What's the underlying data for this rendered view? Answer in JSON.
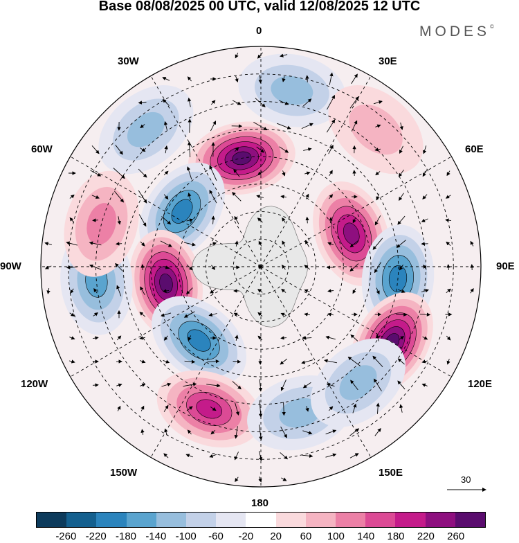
{
  "title": "Base 08/08/2025 00 UTC, valid 12/08/2025 12 UTC",
  "brand": "MODES",
  "brand_mark": "©",
  "map": {
    "projection": "south-polar-stereographic",
    "lon_labels": {
      "top": "0",
      "top_right": "30E",
      "right_upper": "60E",
      "right": "90E",
      "right_lower": "120E",
      "bottom_right": "150E",
      "bottom": "180",
      "bottom_left": "150W",
      "left_lower": "120W",
      "left": "90W",
      "left_upper": "60W",
      "top_left": "30W"
    },
    "reference_vector_label": "30",
    "anomaly_centers": [
      {
        "lon": -10,
        "lat": -50,
        "value": 260,
        "sign": "positive"
      },
      {
        "lon": 70,
        "lat": -55,
        "value": 240,
        "sign": "positive"
      },
      {
        "lon": 95,
        "lat": -40,
        "value": -200,
        "sign": "negative"
      },
      {
        "lon": 120,
        "lat": -35,
        "value": 260,
        "sign": "positive"
      },
      {
        "lon": -55,
        "lat": -55,
        "value": -180,
        "sign": "negative"
      },
      {
        "lon": -100,
        "lat": -55,
        "value": 260,
        "sign": "positive"
      },
      {
        "lon": -140,
        "lat": -55,
        "value": -200,
        "sign": "negative"
      },
      {
        "lon": -95,
        "lat": -30,
        "value": -160,
        "sign": "negative"
      },
      {
        "lon": -160,
        "lat": -35,
        "value": 180,
        "sign": "positive"
      },
      {
        "lon": 165,
        "lat": -35,
        "value": -120,
        "sign": "negative"
      },
      {
        "lon": 10,
        "lat": -25,
        "value": -120,
        "sign": "negative"
      },
      {
        "lon": -40,
        "lat": -25,
        "value": -100,
        "sign": "negative"
      },
      {
        "lon": -75,
        "lat": -30,
        "value": 100,
        "sign": "positive"
      },
      {
        "lon": 40,
        "lat": -25,
        "value": 60,
        "sign": "positive"
      },
      {
        "lon": 140,
        "lat": -35,
        "value": -120,
        "sign": "negative"
      }
    ]
  },
  "colorbar": {
    "ticks": [
      "-260",
      "-220",
      "-180",
      "-140",
      "-100",
      "-60",
      "-20",
      "20",
      "60",
      "100",
      "140",
      "180",
      "220",
      "260"
    ],
    "colors": [
      "#0d3b5c",
      "#14608f",
      "#2b84bd",
      "#5aa4cf",
      "#97bedd",
      "#c3d1e8",
      "#e5e6f2",
      "#ffffff",
      "#fadadd",
      "#f5b4c2",
      "#ec80a6",
      "#dc4a95",
      "#c41b8a",
      "#8e0f7f",
      "#5a0c6e"
    ]
  }
}
